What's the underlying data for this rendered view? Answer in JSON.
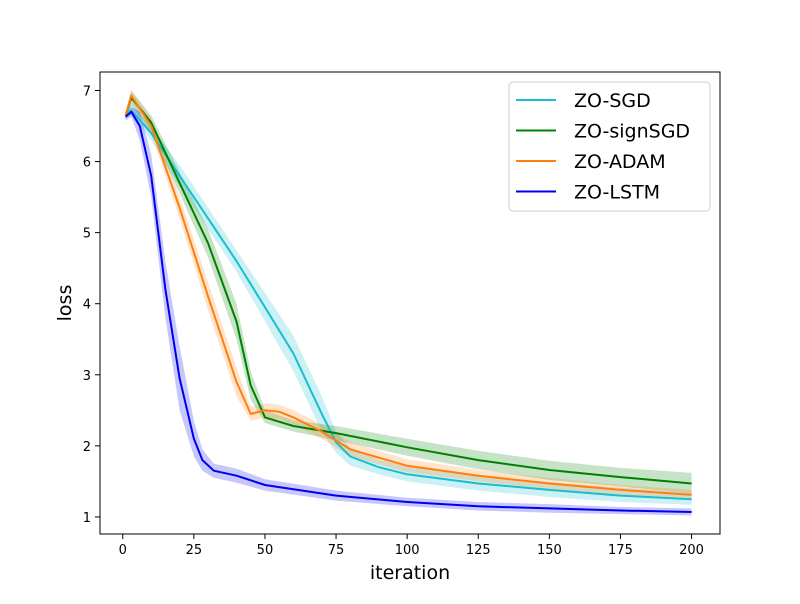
{
  "chart_data": {
    "type": "line",
    "title": "",
    "xlabel": "iteration",
    "ylabel": "loss",
    "xlim": [
      -8,
      210
    ],
    "ylim": [
      0.76,
      7.26
    ],
    "xticks": [
      0,
      25,
      50,
      75,
      100,
      125,
      150,
      175,
      200
    ],
    "yticks": [
      1,
      2,
      3,
      4,
      5,
      6,
      7
    ],
    "grid": false,
    "legend": "top-right",
    "series": [
      {
        "name": "ZO-SGD",
        "color": "#17becf",
        "x": [
          1,
          3,
          10,
          20,
          30,
          40,
          50,
          60,
          70,
          75,
          80,
          90,
          100,
          125,
          150,
          175,
          200
        ],
        "y": [
          6.65,
          6.72,
          6.4,
          5.8,
          5.2,
          4.6,
          3.95,
          3.3,
          2.45,
          2.05,
          1.85,
          1.7,
          1.6,
          1.47,
          1.38,
          1.3,
          1.25
        ],
        "lower": [
          6.6,
          6.65,
          6.3,
          5.65,
          5.05,
          4.45,
          3.75,
          3.05,
          2.2,
          1.9,
          1.72,
          1.6,
          1.5,
          1.37,
          1.28,
          1.21,
          1.17
        ],
        "upper": [
          6.7,
          6.8,
          6.5,
          5.95,
          5.35,
          4.75,
          4.15,
          3.55,
          2.7,
          2.2,
          1.98,
          1.8,
          1.72,
          1.58,
          1.49,
          1.41,
          1.34
        ]
      },
      {
        "name": "ZO-signSGD",
        "color": "#008000",
        "x": [
          1,
          3,
          10,
          20,
          30,
          40,
          45,
          50,
          60,
          75,
          100,
          125,
          150,
          175,
          200
        ],
        "y": [
          6.65,
          6.9,
          6.55,
          5.7,
          4.85,
          3.75,
          2.85,
          2.4,
          2.28,
          2.18,
          1.98,
          1.8,
          1.66,
          1.56,
          1.47
        ],
        "lower": [
          6.6,
          6.8,
          6.4,
          5.55,
          4.65,
          3.5,
          2.65,
          2.32,
          2.2,
          2.08,
          1.86,
          1.67,
          1.52,
          1.43,
          1.33
        ],
        "upper": [
          6.7,
          7.0,
          6.65,
          5.85,
          5.05,
          4.0,
          3.05,
          2.5,
          2.36,
          2.28,
          2.1,
          1.93,
          1.79,
          1.69,
          1.62
        ]
      },
      {
        "name": "ZO-ADAM",
        "color": "#ff7f0e",
        "x": [
          1,
          3,
          10,
          20,
          30,
          40,
          45,
          50,
          55,
          60,
          70,
          80,
          100,
          125,
          150,
          175,
          200
        ],
        "y": [
          6.65,
          6.93,
          6.5,
          5.35,
          4.1,
          2.9,
          2.45,
          2.5,
          2.48,
          2.4,
          2.2,
          1.95,
          1.72,
          1.58,
          1.47,
          1.38,
          1.31
        ],
        "lower": [
          6.6,
          6.85,
          6.4,
          5.2,
          3.9,
          2.7,
          2.35,
          2.4,
          2.38,
          2.3,
          2.1,
          1.85,
          1.63,
          1.5,
          1.39,
          1.31,
          1.24
        ],
        "upper": [
          6.7,
          7.0,
          6.6,
          5.5,
          4.3,
          3.1,
          2.55,
          2.6,
          2.58,
          2.5,
          2.3,
          2.05,
          1.81,
          1.66,
          1.55,
          1.45,
          1.38
        ]
      },
      {
        "name": "ZO-LSTM",
        "color": "#0000ee",
        "x": [
          1,
          3,
          6,
          10,
          15,
          20,
          25,
          28,
          32,
          40,
          50,
          75,
          100,
          125,
          150,
          175,
          200
        ],
        "y": [
          6.63,
          6.7,
          6.5,
          5.8,
          4.2,
          2.95,
          2.1,
          1.8,
          1.65,
          1.58,
          1.45,
          1.3,
          1.21,
          1.15,
          1.12,
          1.09,
          1.07
        ],
        "lower": [
          6.58,
          6.63,
          6.3,
          5.5,
          3.8,
          2.5,
          1.85,
          1.65,
          1.55,
          1.48,
          1.37,
          1.23,
          1.15,
          1.09,
          1.06,
          1.04,
          1.02
        ],
        "upper": [
          6.68,
          6.77,
          6.7,
          6.1,
          4.6,
          3.4,
          2.35,
          1.95,
          1.75,
          1.68,
          1.53,
          1.37,
          1.27,
          1.21,
          1.18,
          1.14,
          1.12
        ]
      }
    ]
  }
}
